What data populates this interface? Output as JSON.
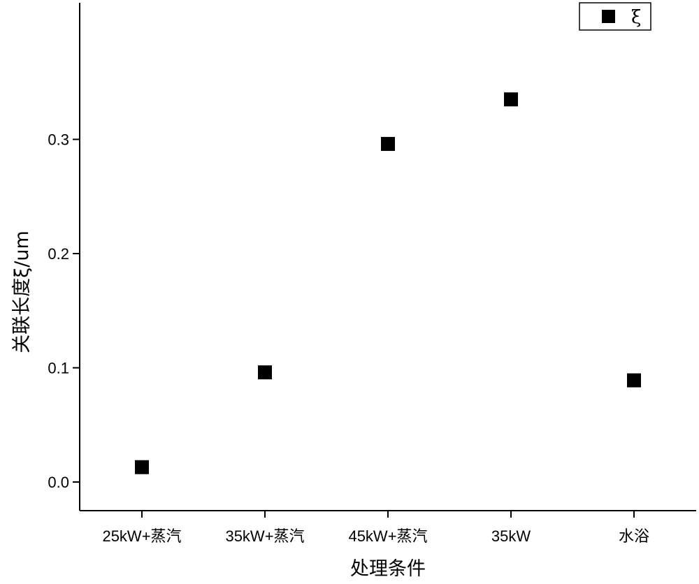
{
  "chart_data": {
    "type": "scatter",
    "categories": [
      "25kW+蒸汽",
      "35kW+蒸汽",
      "45kW+蒸汽",
      "35kW",
      "水浴"
    ],
    "series": [
      {
        "name": "ξ",
        "values": [
          0.013,
          0.096,
          0.296,
          0.335,
          0.089
        ],
        "color": "#000000",
        "marker": "square"
      }
    ],
    "xlabel": "处理条件",
    "ylabel": "关联长度ξ/um",
    "yticks": [
      0.0,
      0.1,
      0.2,
      0.3
    ],
    "ytick_labels": [
      "0.0",
      "0.1",
      "0.2",
      "0.3"
    ],
    "ylim": [
      -0.025,
      0.37
    ],
    "grid": false,
    "legend_position": "top-right"
  }
}
